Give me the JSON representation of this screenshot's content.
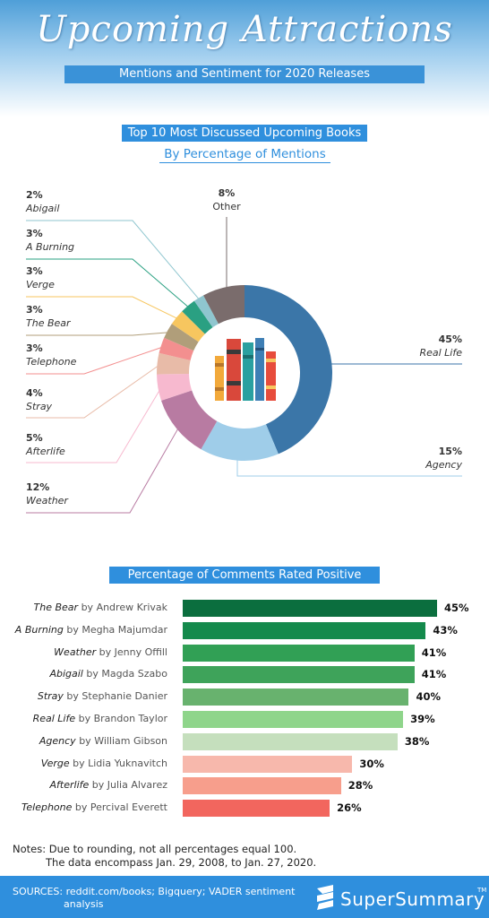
{
  "header": {
    "title": "Upcoming Attractions",
    "subtitle": "Mentions and Sentiment for 2020 Releases"
  },
  "colors": {
    "brand_blue": "#2f8fdd",
    "donut_center_icon": "books-icon"
  },
  "chart_data": [
    {
      "type": "pie",
      "title": "Top 10 Most Discussed Upcoming Books",
      "subtitle": "By Percentage of Mentions",
      "series": [
        {
          "name": "Real Life",
          "value": 45,
          "label": "45%",
          "color": "#3b76a8"
        },
        {
          "name": "Agency",
          "value": 15,
          "label": "15%",
          "color": "#9fcde9"
        },
        {
          "name": "Weather",
          "value": 12,
          "label": "12%",
          "color": "#b87ba2"
        },
        {
          "name": "Afterlife",
          "value": 5,
          "label": "5%",
          "color": "#f7b9cf"
        },
        {
          "name": "Stray",
          "value": 4,
          "label": "4%",
          "color": "#e8bba8"
        },
        {
          "name": "Telephone",
          "value": 3,
          "label": "3%",
          "color": "#f38f8f"
        },
        {
          "name": "The Bear",
          "value": 3,
          "label": "3%",
          "color": "#b09e7a"
        },
        {
          "name": "Verge",
          "value": 3,
          "label": "3%",
          "color": "#f7c65f"
        },
        {
          "name": "A Burning",
          "value": 3,
          "label": "3%",
          "color": "#2aa082"
        },
        {
          "name": "Abigail",
          "value": 2,
          "label": "2%",
          "color": "#8fc6cf"
        },
        {
          "name": "Other",
          "value": 8,
          "label": "8%",
          "color": "#7a6c6c"
        }
      ]
    },
    {
      "type": "bar",
      "title": "Percentage of Comments Rated Positive",
      "categories": [
        {
          "title": "The Bear",
          "author": "by Andrew Krivak"
        },
        {
          "title": "A Burning",
          "author": "by Megha Majumdar"
        },
        {
          "title": "Weather",
          "author": "by Jenny Offill"
        },
        {
          "title": "Abigail",
          "author": "by Magda Szabo"
        },
        {
          "title": "Stray",
          "author": "by Stephanie Danier"
        },
        {
          "title": "Real Life",
          "author": "by Brandon Taylor"
        },
        {
          "title": "Agency",
          "author": "by William Gibson"
        },
        {
          "title": "Verge",
          "author": "by Lidia Yuknavitch"
        },
        {
          "title": "Afterlife",
          "author": "by Julia Alvarez"
        },
        {
          "title": "Telephone",
          "author": "by Percival Everett"
        }
      ],
      "values": [
        45,
        43,
        41,
        41,
        40,
        39,
        38,
        30,
        28,
        26
      ],
      "value_labels": [
        "45%",
        "43%",
        "41%",
        "41%",
        "40%",
        "39%",
        "38%",
        "30%",
        "28%",
        "26%"
      ],
      "colors": [
        "#0b6e3e",
        "#148a4c",
        "#31a055",
        "#3ea35a",
        "#68b26e",
        "#8fd58b",
        "#c5dfbd",
        "#f7b8ac",
        "#f79e8c",
        "#f2665e"
      ]
    }
  ],
  "notes": {
    "line1": "Notes: Due to rounding, not all percentages equal 100.",
    "line2": "The data encompass Jan. 29, 2008, to Jan. 27, 2020."
  },
  "footer": {
    "sources_line1": "SOURCES: reddit.com/books; Bigquery; VADER sentiment",
    "sources_line2": "analysis",
    "logo_text": "SuperSummary",
    "logo_tm": "TM"
  }
}
